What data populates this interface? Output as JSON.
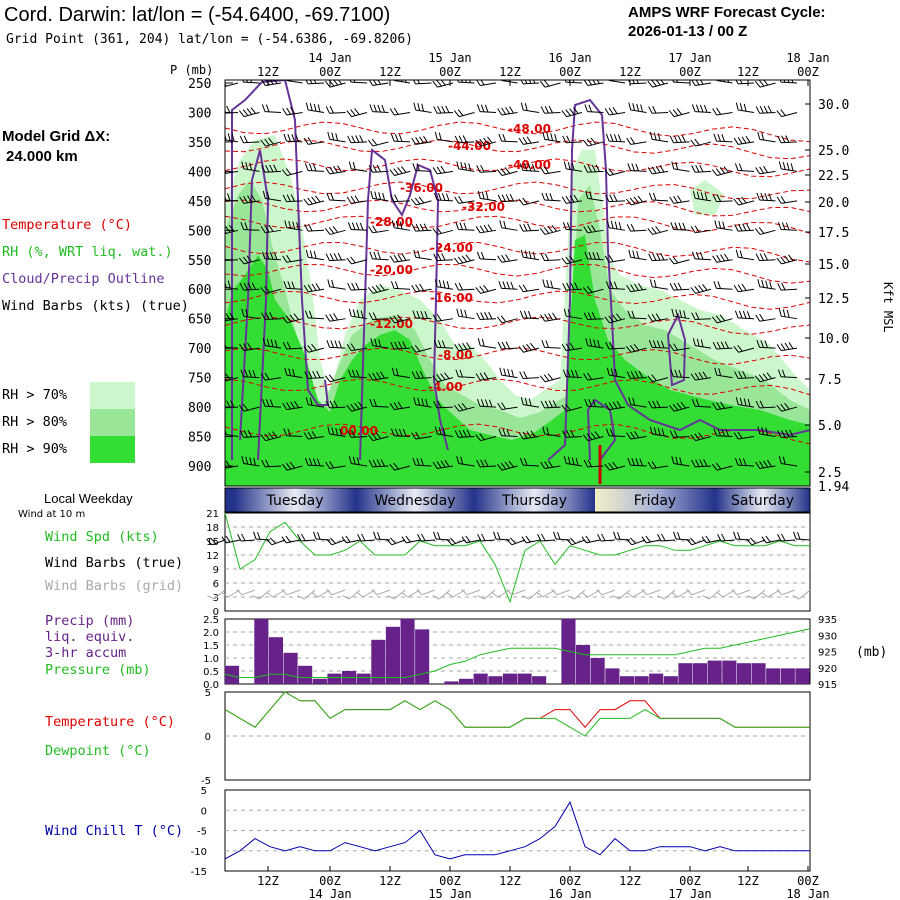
{
  "header": {
    "title": "Cord. Darwin:  lat/lon = (-54.6400, -69.7100)",
    "subtitle": "Grid Point (361, 204) lat/lon = (-54.6386, -69.8206)",
    "cycle_line1": "AMPS WRF Forecast Cycle:",
    "cycle_line2": "2026-01-13 / 00  Z",
    "grid_label": "Model Grid ΔX:",
    "grid_value": "24.000 km"
  },
  "legend": {
    "temperature": "Temperature (°C)",
    "rh": "RH (%, WRT liq. wat.)",
    "cloud": "Cloud/Precip Outline",
    "wind": "Wind Barbs (kts) (true)",
    "rh70": "RH > 70%",
    "rh80": "RH > 80%",
    "rh90": "RH > 90%"
  },
  "colors": {
    "rh70": "#ccf7cc",
    "rh80": "#99e699",
    "rh90": "#33dd33",
    "temperature": "#dd0000",
    "cloud": "#663399",
    "wind_green": "#22bb22",
    "precip": "#662288",
    "windchill": "#0000aa"
  },
  "time_axis": {
    "top_hour_labels": [
      "12Z",
      "00Z",
      "12Z",
      "00Z",
      "12Z",
      "00Z",
      "12Z",
      "00Z",
      "12Z",
      "00Z"
    ],
    "date_labels": [
      "14 Jan",
      "15 Jan",
      "16 Jan",
      "17 Jan",
      "18 Jan"
    ]
  },
  "pressure_axis": {
    "title": "P (mb)",
    "levels": [
      "250",
      "300",
      "350",
      "400",
      "450",
      "500",
      "550",
      "600",
      "650",
      "700",
      "750",
      "800",
      "850",
      "900"
    ]
  },
  "height_axis": {
    "title": "Kft MSL",
    "labels": [
      "30.0",
      "25.0",
      "22.5",
      "20.0",
      "17.5",
      "15.0",
      "12.5",
      "10.0",
      "7.5",
      "5.0",
      "2.5",
      "1.94"
    ]
  },
  "temperature_labels": [
    "-48.00",
    "-44.00",
    "-40.00",
    "-36.00",
    "-32.00",
    "-28.00",
    "-24.00",
    "-20.00",
    "-16.00",
    "-12.00",
    "-8.00",
    "-4.00",
    "00.00"
  ],
  "weekday": {
    "label": "Local Weekday",
    "days": [
      "Tuesday",
      "Wednesday",
      "Thursday",
      "Friday",
      "Saturday"
    ]
  },
  "wind_panel": {
    "note": "Wind at 10 m",
    "speed_label": "Wind Spd (kts)",
    "barbs_true_label": "Wind Barbs (true)",
    "barbs_grid_label": "Wind Barbs (grid)",
    "y_ticks": [
      "21",
      "18",
      "15",
      "12",
      "9",
      "6",
      "3",
      "0"
    ]
  },
  "precip_panel": {
    "label1": "Precip (mm)",
    "label2": "liq. equiv.",
    "label3": "3-hr accum",
    "label4": "Pressure (mb)",
    "y_ticks": [
      "2.5",
      "2.0",
      "1.5",
      "1.0",
      "0.5",
      "0.0"
    ],
    "p_ticks": [
      "935",
      "930",
      "925",
      "920",
      "915"
    ],
    "unit": "(mb)"
  },
  "temp_panel": {
    "label1": "Temperature (°C)",
    "label2": "Dewpoint (°C)",
    "y_ticks": [
      "5",
      "0",
      "-5"
    ]
  },
  "chill_panel": {
    "label": "Wind Chill T (°C)",
    "y_ticks": [
      "5",
      "0",
      "-5",
      "-10",
      "-15"
    ]
  },
  "chart_data": {
    "type": "line",
    "x": [
      "13/03Z",
      "13/06Z",
      "13/09Z",
      "13/12Z",
      "13/15Z",
      "13/18Z",
      "13/21Z",
      "14/00Z",
      "14/03Z",
      "14/06Z",
      "14/09Z",
      "14/12Z",
      "14/15Z",
      "14/18Z",
      "14/21Z",
      "15/00Z",
      "15/03Z",
      "15/06Z",
      "15/09Z",
      "15/12Z",
      "15/15Z",
      "15/18Z",
      "15/21Z",
      "16/00Z",
      "16/03Z",
      "16/06Z",
      "16/09Z",
      "16/12Z",
      "16/15Z",
      "16/18Z",
      "16/21Z",
      "17/00Z",
      "17/03Z",
      "17/06Z",
      "17/09Z",
      "17/12Z",
      "17/15Z",
      "17/18Z",
      "17/21Z",
      "18/00Z"
    ],
    "series": [
      {
        "name": "Wind Spd (kts)",
        "values": [
          21,
          9,
          11,
          17,
          19,
          15,
          12,
          12,
          13,
          15,
          12,
          12,
          12,
          15,
          14,
          14,
          14,
          15,
          10,
          2,
          13,
          15,
          10,
          14,
          13,
          12,
          12,
          13,
          14,
          14,
          13,
          13,
          14,
          15,
          14,
          14,
          14,
          15,
          14,
          14
        ]
      },
      {
        "name": "Precip (mm)",
        "values": [
          0.7,
          0.0,
          2.5,
          1.8,
          1.2,
          0.7,
          0.2,
          0.4,
          0.5,
          0.4,
          1.7,
          2.2,
          2.5,
          2.1,
          0.0,
          0.1,
          0.2,
          0.4,
          0.3,
          0.4,
          0.4,
          0.3,
          0.0,
          2.5,
          1.5,
          1.0,
          0.6,
          0.3,
          0.3,
          0.4,
          0.3,
          0.8,
          0.8,
          0.9,
          0.9,
          0.8,
          0.8,
          0.6,
          0.6,
          0.6
        ]
      },
      {
        "name": "Pressure (mb)",
        "values": [
          918,
          917,
          917,
          918,
          918,
          917,
          917,
          917,
          917,
          917,
          917,
          917,
          917,
          918,
          919,
          921,
          922,
          924,
          925,
          926,
          926,
          926,
          926,
          925,
          924,
          924,
          924,
          924,
          924,
          924,
          924,
          925,
          926,
          926,
          927,
          928,
          929,
          930,
          931,
          932
        ]
      },
      {
        "name": "Temperature (°C)",
        "values": [
          3,
          2,
          1,
          3,
          5,
          4,
          4,
          2,
          3,
          3,
          3,
          3,
          4,
          3,
          4,
          3,
          1,
          1,
          1,
          1,
          2,
          2,
          3,
          3,
          1,
          3,
          3,
          4,
          4,
          2,
          2,
          2,
          2,
          2,
          1,
          1,
          1,
          1,
          1,
          1
        ]
      },
      {
        "name": "Dewpoint (°C)",
        "values": [
          3,
          2,
          1,
          3,
          5,
          4,
          4,
          2,
          3,
          3,
          3,
          3,
          4,
          3,
          4,
          3,
          1,
          1,
          1,
          1,
          2,
          2,
          2,
          1,
          0,
          2,
          2,
          2,
          3,
          2,
          2,
          2,
          2,
          2,
          1,
          1,
          1,
          1,
          1,
          1
        ]
      },
      {
        "name": "Wind Chill T (°C)",
        "values": [
          -12,
          -10,
          -7,
          -9,
          -10,
          -9,
          -10,
          -10,
          -8,
          -9,
          -10,
          -9,
          -8,
          -5,
          -11,
          -12,
          -11,
          -11,
          -11,
          -10,
          -9,
          -7,
          -4,
          2,
          -9,
          -11,
          -7,
          -10,
          -10,
          -9,
          -9,
          -9,
          -10,
          -9,
          -10,
          -10,
          -10,
          -10,
          -10,
          -10
        ]
      }
    ],
    "xlim": [
      "13/03Z",
      "18/00Z"
    ],
    "ylim_wind": [
      0,
      21
    ],
    "ylim_precip": [
      0,
      2.5
    ],
    "ylim_pressure": [
      915,
      935
    ],
    "ylim_temp": [
      -5,
      5
    ],
    "ylim_chill": [
      -15,
      5
    ]
  }
}
